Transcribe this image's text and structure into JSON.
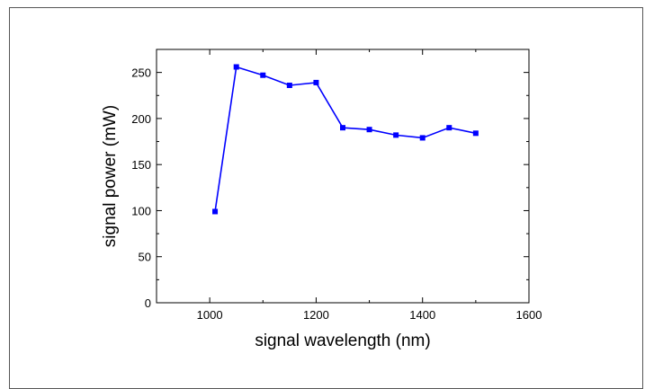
{
  "chart_data": {
    "type": "line",
    "title": "",
    "xlabel": "signal wavelength (nm)",
    "ylabel": "signal power (mW)",
    "xlim": [
      900,
      1600
    ],
    "ylim": [
      0,
      275
    ],
    "x_ticks": [
      1000,
      1200,
      1400,
      1600
    ],
    "y_ticks": [
      0,
      50,
      100,
      150,
      200,
      250
    ],
    "x_tick_labels": [
      "1000",
      "1200",
      "1400",
      "1600"
    ],
    "y_tick_labels": [
      "0",
      "50",
      "100",
      "150",
      "200",
      "250"
    ],
    "grid": false,
    "legend": "none",
    "series": [
      {
        "color": "#0000ff",
        "marker": "square",
        "x": [
          1010,
          1050,
          1100,
          1150,
          1200,
          1250,
          1300,
          1350,
          1400,
          1450,
          1500
        ],
        "y": [
          99,
          256,
          247,
          236,
          239,
          190,
          188,
          182,
          179,
          190,
          184
        ]
      }
    ]
  }
}
